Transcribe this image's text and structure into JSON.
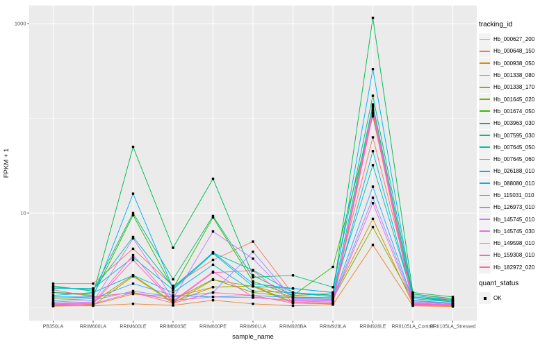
{
  "chart_data": {
    "type": "line",
    "title": "",
    "xlabel": "sample_name",
    "ylabel": "FPKM + 1",
    "yscale": "log10",
    "yticks": [
      1000,
      10
    ],
    "yticks_minor": [
      100,
      1
    ],
    "ylim_px_note": "log axis, 2 decades between labeled ticks",
    "grid": true,
    "panel_bg": "#EBEBEB",
    "grid_color": "#FFFFFF",
    "tick_label_color": "#4D4D4D",
    "point_color": "#000000",
    "categories": [
      "PB350LA",
      "RRIM600LA",
      "RRIM600LE",
      "RRIM600SE",
      "RRIM600PE",
      "RRIM901LA",
      "RRIM928BA",
      "RRIM928LA",
      "RRIM928LE",
      "RRII105LA_Control",
      "RRII105LA_Stressed"
    ],
    "legend": {
      "title": "tracking_id",
      "position": "right"
    },
    "quant_legend": {
      "title": "quant_status",
      "items": [
        "OK"
      ]
    },
    "series": [
      {
        "name": "Hb_000627_200",
        "color": "#F8766D",
        "values": [
          1.8,
          1.8,
          4.2,
          1.7,
          3.2,
          5.0,
          1.4,
          1.4,
          63,
          1.4,
          1.22
        ]
      },
      {
        "name": "Hb_000648_150",
        "color": "#EA8331",
        "values": [
          1.05,
          1.05,
          1.1,
          1.06,
          1.2,
          1.1,
          1.05,
          1.08,
          4.6,
          1.05,
          1.03
        ]
      },
      {
        "name": "Hb_000938_050",
        "color": "#D89000",
        "values": [
          1.1,
          1.08,
          1.4,
          1.3,
          1.65,
          1.7,
          1.3,
          1.28,
          8.7,
          1.1,
          1.06
        ]
      },
      {
        "name": "Hb_001338_080",
        "color": "#C09B00",
        "values": [
          1.04,
          1.06,
          2.15,
          1.12,
          1.97,
          1.68,
          1.12,
          1.1,
          132,
          1.12,
          1.08
        ]
      },
      {
        "name": "Hb_001338_170",
        "color": "#A3A500",
        "values": [
          1.12,
          1.15,
          2.2,
          1.15,
          1.65,
          1.7,
          1.15,
          1.12,
          135,
          1.15,
          1.1
        ]
      },
      {
        "name": "Hb_001645_020",
        "color": "#7CAE00",
        "values": [
          1.25,
          1.3,
          1.45,
          1.2,
          2.0,
          1.45,
          1.3,
          1.25,
          7.1,
          1.2,
          1.1
        ]
      },
      {
        "name": "Hb_001674_050",
        "color": "#39B600",
        "values": [
          1.45,
          1.35,
          9.5,
          1.6,
          9.0,
          1.9,
          1.35,
          2.7,
          105,
          1.3,
          1.15
        ]
      },
      {
        "name": "Hb_003963_030",
        "color": "#00BB4E",
        "values": [
          1.45,
          1.4,
          50,
          4.3,
          23,
          2.2,
          1.35,
          1.4,
          1150,
          1.45,
          1.3
        ]
      },
      {
        "name": "Hb_007595_030",
        "color": "#00BF7D",
        "values": [
          1.7,
          1.5,
          10,
          2.0,
          9.3,
          2.1,
          2.2,
          1.65,
          173,
          1.4,
          1.25
        ]
      },
      {
        "name": "Hb_007645_050",
        "color": "#00C1A3",
        "values": [
          1.65,
          1.55,
          5.6,
          1.65,
          3.8,
          2.5,
          1.45,
          1.35,
          140,
          1.3,
          1.2
        ]
      },
      {
        "name": "Hb_007645_060",
        "color": "#00BFC4",
        "values": [
          1.6,
          1.6,
          3.4,
          1.55,
          3.75,
          1.68,
          1.6,
          1.45,
          32,
          1.3,
          1.18
        ]
      },
      {
        "name": "Hb_026188_010",
        "color": "#00BADE",
        "values": [
          1.35,
          1.45,
          2.2,
          1.45,
          2.85,
          1.5,
          1.45,
          1.3,
          45,
          1.25,
          1.15
        ]
      },
      {
        "name": "Hb_088080_010",
        "color": "#00B0F6",
        "values": [
          1.3,
          1.3,
          16,
          1.6,
          3.85,
          1.8,
          1.6,
          1.45,
          330,
          1.35,
          1.2
        ]
      },
      {
        "name": "Hb_115031_010",
        "color": "#35A2FF",
        "values": [
          1.2,
          1.25,
          1.8,
          1.35,
          1.3,
          1.35,
          1.28,
          1.25,
          19,
          1.2,
          1.12
        ]
      },
      {
        "name": "Hb_126973_010",
        "color": "#9590FF",
        "values": [
          1.15,
          1.2,
          1.5,
          1.3,
          1.45,
          3.9,
          1.25,
          1.22,
          14.5,
          1.18,
          1.1
        ]
      },
      {
        "name": "Hb_145745_010",
        "color": "#C77CFF",
        "values": [
          1.12,
          1.15,
          5.4,
          1.25,
          6.4,
          3.3,
          1.22,
          1.2,
          128,
          1.15,
          1.1
        ]
      },
      {
        "name": "Hb_145745_030",
        "color": "#E76BF3",
        "values": [
          1.08,
          1.1,
          1.45,
          1.2,
          1.3,
          1.28,
          1.2,
          1.18,
          12.7,
          1.12,
          1.08
        ]
      },
      {
        "name": "Hb_149598_010",
        "color": "#FA62DB",
        "values": [
          1.1,
          1.12,
          3.6,
          1.18,
          2.4,
          1.3,
          1.18,
          1.15,
          122,
          1.1,
          1.07
        ]
      },
      {
        "name": "Hb_159308_010",
        "color": "#FF62BC",
        "values": [
          1.06,
          1.1,
          3.2,
          1.15,
          2.35,
          2.47,
          1.15,
          1.12,
          115,
          1.08,
          1.06
        ]
      },
      {
        "name": "Hb_182972_020",
        "color": "#FF6A98",
        "values": [
          1.55,
          1.3,
          1.45,
          1.12,
          1.45,
          1.35,
          1.12,
          1.1,
          110,
          1.07,
          1.05
        ]
      }
    ]
  }
}
